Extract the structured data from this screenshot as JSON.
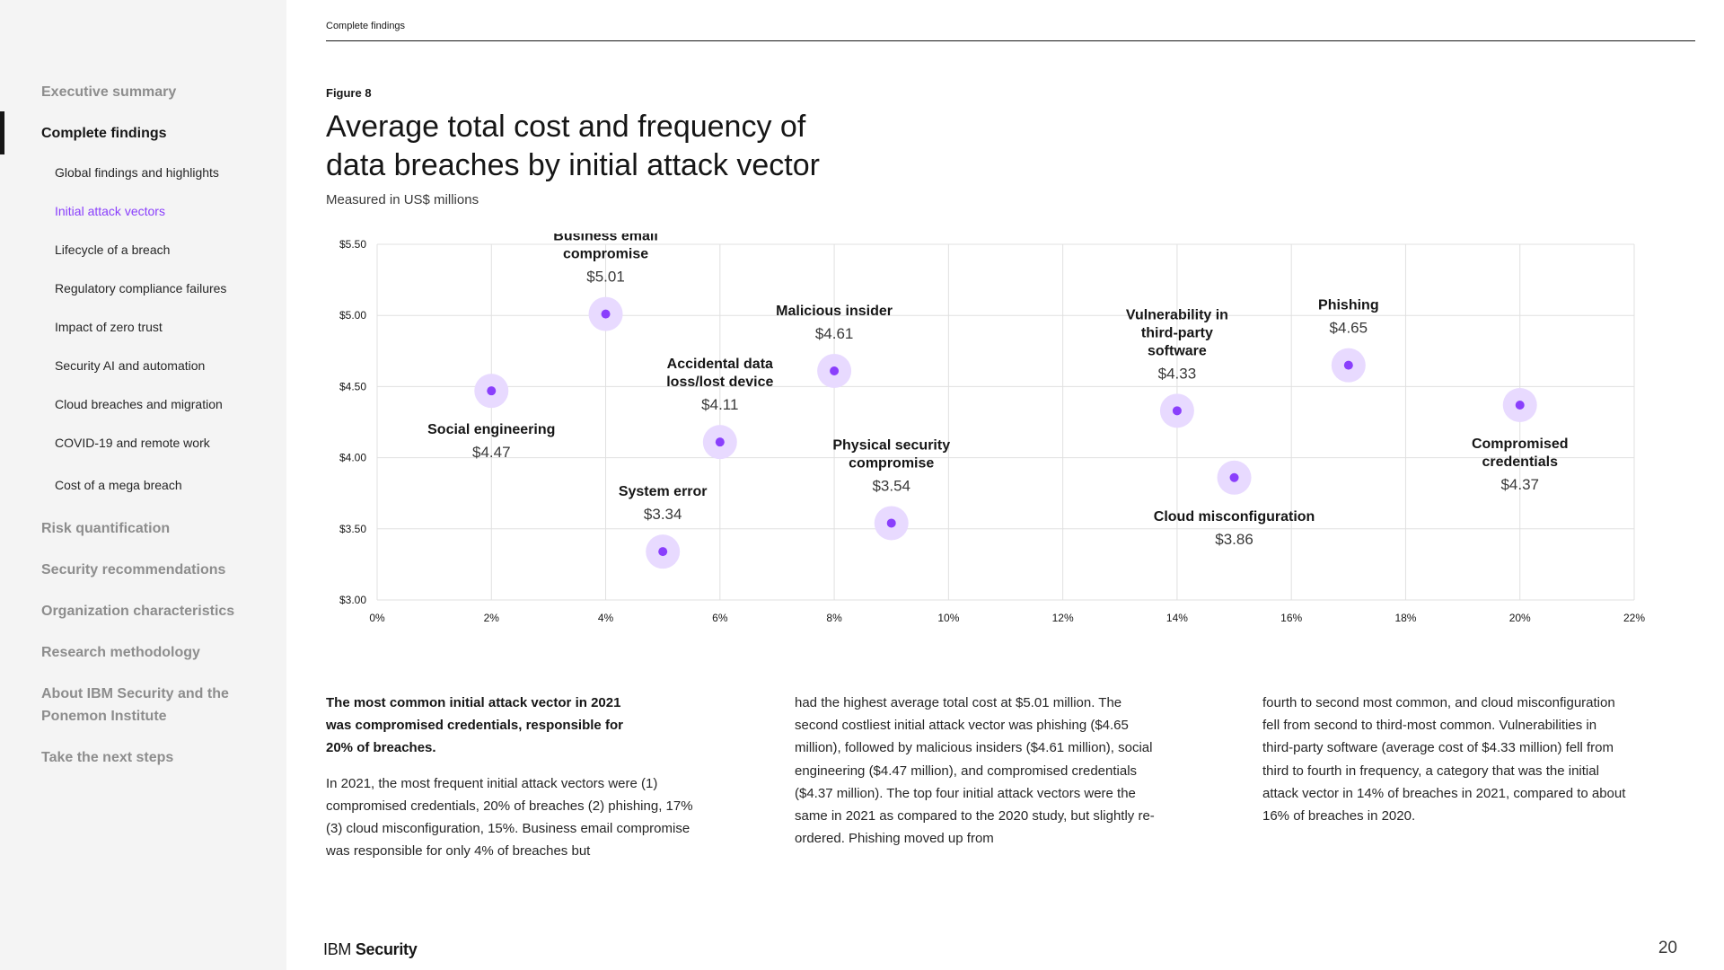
{
  "sidebar": {
    "items": [
      {
        "label": "Executive summary"
      },
      {
        "label": "Complete findings"
      },
      {
        "label": "Global findings and highlights"
      },
      {
        "label": "Initial attack vectors"
      },
      {
        "label": "Lifecycle of a breach"
      },
      {
        "label": "Regulatory compliance failures"
      },
      {
        "label": "Impact of zero trust"
      },
      {
        "label": "Security AI and automation"
      },
      {
        "label": "Cloud breaches and migration"
      },
      {
        "label": "COVID-19 and remote work"
      },
      {
        "label": "Cost of a mega breach"
      },
      {
        "label": "Risk quantification"
      },
      {
        "label": "Security recommendations"
      },
      {
        "label": "Organization characteristics"
      },
      {
        "label": "Research methodology"
      },
      {
        "label": "About IBM Security and the Ponemon Institute"
      },
      {
        "label": "Take the next steps"
      }
    ]
  },
  "header": {
    "section": "Complete findings"
  },
  "figure": {
    "label": "Figure 8",
    "title": "Average total cost and frequency of data breaches by initial attack vector",
    "subtitle": "Measured in US$ millions"
  },
  "chart_data": {
    "type": "scatter",
    "title": "Average total cost and frequency of data breaches by initial attack vector",
    "subtitle": "Measured in US$ millions",
    "xlabel": "",
    "ylabel": "",
    "xlim": [
      0,
      22
    ],
    "ylim": [
      3.0,
      5.5
    ],
    "x_ticks": [
      0,
      2,
      4,
      6,
      8,
      10,
      12,
      14,
      16,
      18,
      20,
      22
    ],
    "x_tick_labels": [
      "0%",
      "2%",
      "4%",
      "6%",
      "8%",
      "10%",
      "12%",
      "14%",
      "16%",
      "18%",
      "20%",
      "22%"
    ],
    "y_ticks": [
      3.0,
      3.5,
      4.0,
      4.5,
      5.0,
      5.5
    ],
    "y_tick_labels": [
      "$3.00",
      "$3.50",
      "$4.00",
      "$4.50",
      "$5.00",
      "$5.50"
    ],
    "grid": true,
    "points": [
      {
        "name": "Business email compromise",
        "x": 4,
        "y": 5.01,
        "value_label": "$5.01",
        "label_pos": "above"
      },
      {
        "name": "Social engineering",
        "x": 2,
        "y": 4.47,
        "value_label": "$4.47",
        "label_pos": "below"
      },
      {
        "name": "System error",
        "x": 5,
        "y": 3.34,
        "value_label": "$3.34",
        "label_pos": "above"
      },
      {
        "name": "Accidental data loss/lost device",
        "x": 6,
        "y": 4.11,
        "value_label": "$4.11",
        "label_pos": "above"
      },
      {
        "name": "Malicious insider",
        "x": 8,
        "y": 4.61,
        "value_label": "$4.61",
        "label_pos": "above"
      },
      {
        "name": "Physical  security compromise",
        "x": 9,
        "y": 3.54,
        "value_label": "$3.54",
        "label_pos": "above"
      },
      {
        "name": "Vulnerability in third-party software",
        "x": 14,
        "y": 4.33,
        "value_label": "$4.33",
        "label_pos": "above"
      },
      {
        "name": "Cloud misconfiguration",
        "x": 15,
        "y": 3.86,
        "value_label": "$3.86",
        "label_pos": "below"
      },
      {
        "name": "Phishing",
        "x": 17,
        "y": 4.65,
        "value_label": "$4.65",
        "label_pos": "above"
      },
      {
        "name": "Compromised credentials",
        "x": 20,
        "y": 4.37,
        "value_label": "$4.37",
        "label_pos": "below"
      }
    ],
    "colors": {
      "halo": "#e8daff",
      "dot": "#8a3ffc",
      "grid": "#e0e0e0"
    }
  },
  "body": {
    "lead": "The most common initial attack vector in 2021 was compromised credentials, responsible for 20% of breaches.",
    "col1": "In 2021, the most frequent initial attack vectors were (1) compromised credentials, 20% of breaches (2) phishing, 17% (3) cloud misconfiguration, 15%. Business email compromise was responsible for only 4% of breaches but",
    "col2": "had the highest average total cost at $5.01 million. The second costliest initial attack vector was phishing ($4.65 million), followed by malicious insiders ($4.61 million), social engineering ($4.47 million), and compromised credentials ($4.37 million). The top four initial attack vectors were the same in 2021 as compared to the 2020 study, but slightly re-ordered. Phishing moved up from",
    "col3": "fourth to second most common, and cloud misconfiguration fell from second to third-most common. Vulnerabilities in third-party software (average cost of $4.33 million) fell from third to fourth in frequency, a category that was the initial attack vector in 14% of breaches in 2021, compared to about 16% of breaches in 2020."
  },
  "footer": {
    "logo_ibm": "IBM",
    "logo_security": "Security",
    "page_number": "20"
  }
}
